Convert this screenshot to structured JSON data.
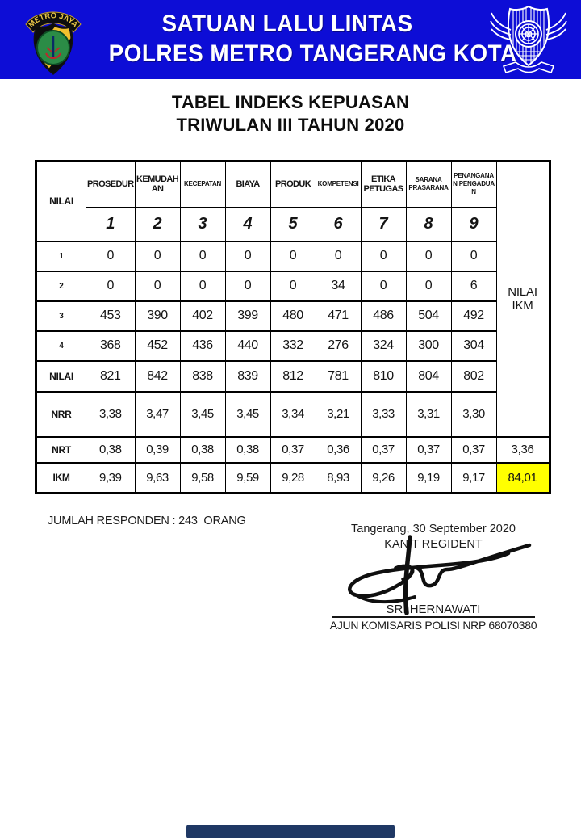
{
  "banner": {
    "line1": "SATUAN LALU LINTAS",
    "line2": "POLRES METRO TANGERANG KOTA",
    "left_logo": "metro-jaya-police-badge",
    "left_logo_banner": "METRO JAYA",
    "right_logo": "traffic-police-emblem"
  },
  "title": {
    "line1": "TABEL INDEKS KEPUASAN",
    "line2": "TRIWULAN III TAHUN 2020"
  },
  "table": {
    "corner_label": "NILAI",
    "col_headers": [
      "PROSEDUR",
      "KEMUDAHAN",
      "KECEPATAN",
      "BIAYA",
      "PRODUK",
      "KOMPETENSI",
      "ETIKA PETUGAS",
      "SARANA PRASARANA",
      "PENANGANAN PENGADUAN"
    ],
    "col_numbers": [
      "1",
      "2",
      "3",
      "4",
      "5",
      "6",
      "7",
      "8",
      "9"
    ],
    "ikm_col_label": "NILAI IKM",
    "rows": [
      {
        "label": "1",
        "values": [
          "0",
          "0",
          "0",
          "0",
          "0",
          "0",
          "0",
          "0",
          "0"
        ]
      },
      {
        "label": "2",
        "values": [
          "0",
          "0",
          "0",
          "0",
          "0",
          "34",
          "0",
          "0",
          "6"
        ]
      },
      {
        "label": "3",
        "values": [
          "453",
          "390",
          "402",
          "399",
          "480",
          "471",
          "486",
          "504",
          "492"
        ]
      },
      {
        "label": "4",
        "values": [
          "368",
          "452",
          "436",
          "440",
          "332",
          "276",
          "324",
          "300",
          "304"
        ]
      },
      {
        "label": "NILAI",
        "values": [
          "821",
          "842",
          "838",
          "839",
          "812",
          "781",
          "810",
          "804",
          "802"
        ]
      },
      {
        "label": "NRR",
        "values": [
          "3,38",
          "3,47",
          "3,45",
          "3,45",
          "3,34",
          "3,21",
          "3,33",
          "3,31",
          "3,30"
        ]
      },
      {
        "label": "NRT",
        "values": [
          "0,38",
          "0,39",
          "0,38",
          "0,38",
          "0,37",
          "0,36",
          "0,37",
          "0,37",
          "0,37"
        ],
        "total": "3,36"
      },
      {
        "label": "IKM",
        "values": [
          "9,39",
          "9,63",
          "9,58",
          "9,59",
          "9,28",
          "8,93",
          "9,26",
          "9,19",
          "9,17"
        ],
        "total": "84,01",
        "total_highlight": "#FFFF00"
      }
    ]
  },
  "footer": {
    "respondents": "JUMLAH RESPONDEN : 243  ORANG",
    "place_date": "Tangerang, 30 September 2020",
    "position_title": "KANIT REGIDENT",
    "name": "SRI HERNAWATI",
    "rank": "AJUN KOMISARIS POLISI NRP 68070380"
  },
  "colors": {
    "banner_bg": "#0D0DD6",
    "highlight": "#FFFF00",
    "bottom_bar": "#1F3864"
  }
}
